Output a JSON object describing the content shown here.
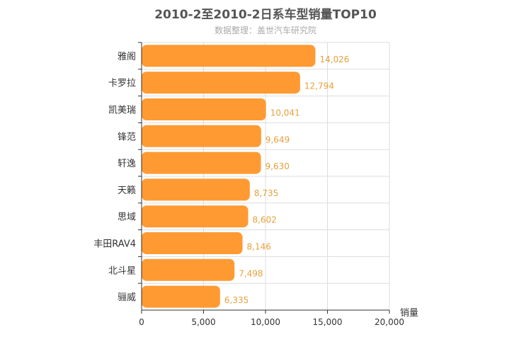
{
  "chart_data": {
    "type": "bar",
    "orientation": "horizontal",
    "title": "2010-2至2010-2日系车型销量TOP10",
    "subtitle": "数据整理：盖世汽车研究院",
    "categories": [
      "雅阁",
      "卡罗拉",
      "凯美瑞",
      "锋范",
      "轩逸",
      "天籁",
      "思域",
      "丰田RAV4",
      "北斗星",
      "骊威"
    ],
    "values": [
      14026,
      12794,
      10041,
      9649,
      9630,
      8735,
      8602,
      8146,
      7498,
      6335
    ],
    "value_labels": [
      "14,026",
      "12,794",
      "10,041",
      "9,649",
      "9,630",
      "8,735",
      "8,602",
      "8,146",
      "7,498",
      "6,335"
    ],
    "xlabel": "销量",
    "ylabel": "",
    "xlim": [
      0,
      20000
    ],
    "xticks": [
      0,
      5000,
      10000,
      15000,
      20000
    ],
    "xtick_labels": [
      "0",
      "5,000",
      "10,000",
      "15,000",
      "20,000"
    ],
    "grid": true,
    "bar_color": "#ff9a33",
    "label_color": "#e8a03c"
  }
}
